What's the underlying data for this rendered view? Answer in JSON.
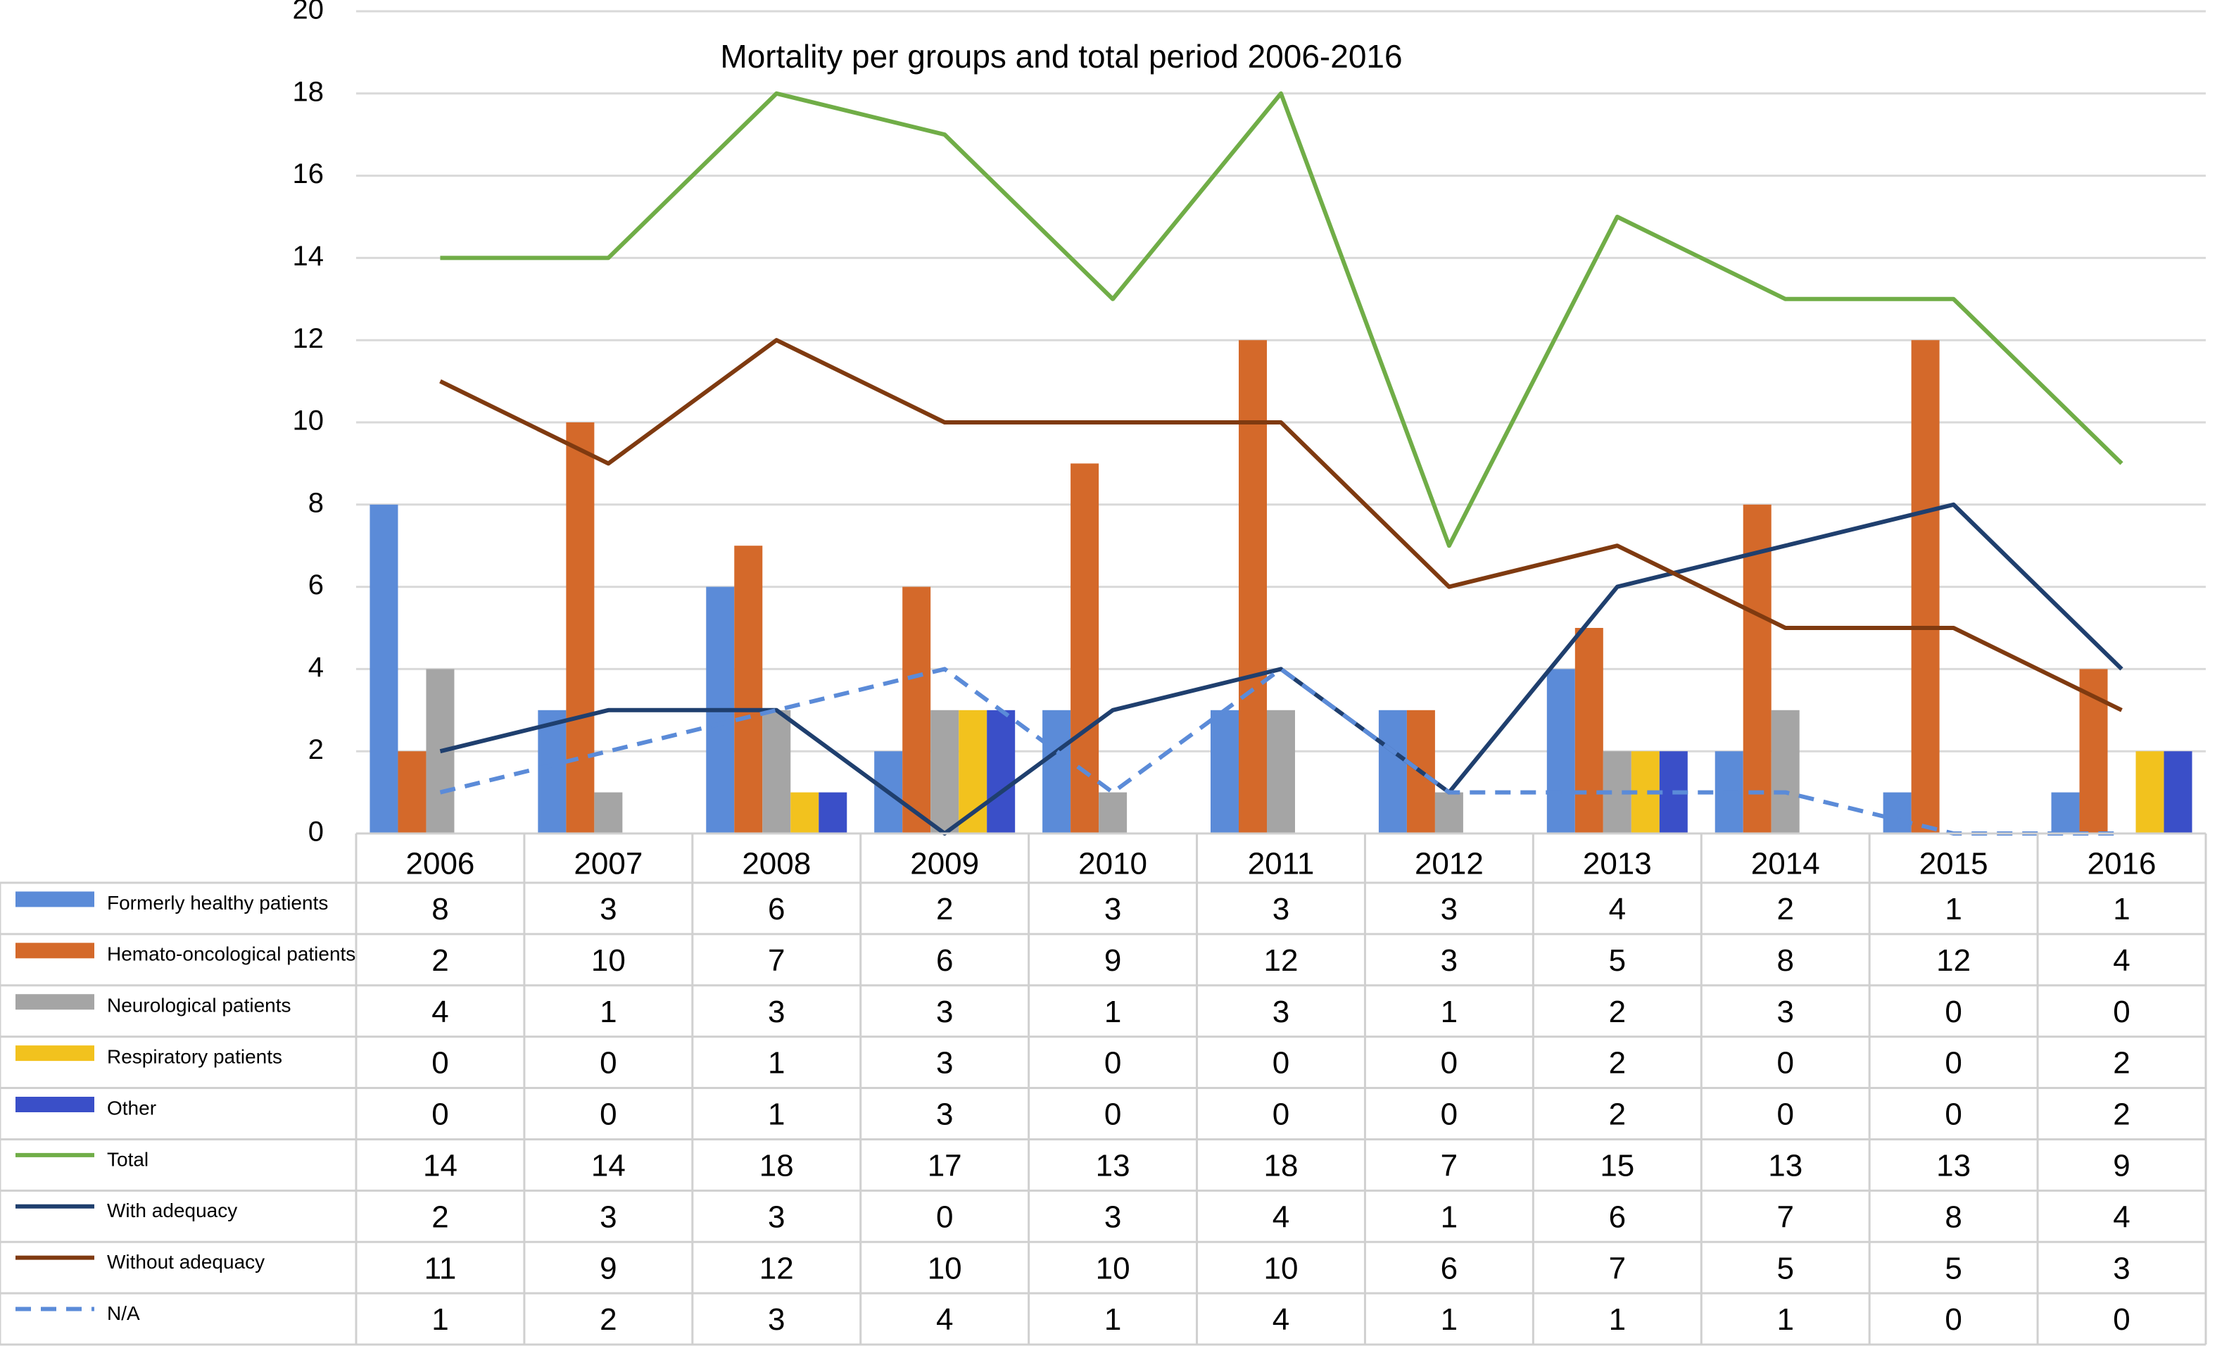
{
  "chart_data": {
    "type": "bar_line",
    "title": "Mortality per groups and total period 2006-2016",
    "categories": [
      "2006",
      "2007",
      "2008",
      "2009",
      "2010",
      "2011",
      "2012",
      "2013",
      "2014",
      "2015",
      "2016"
    ],
    "ylim": [
      0,
      20
    ],
    "yticks": [
      0,
      2,
      4,
      6,
      8,
      10,
      12,
      14,
      16,
      18,
      20
    ],
    "grid": true,
    "data_table": true,
    "series": [
      {
        "name": "Formerly healthy patients",
        "type": "bar",
        "color": "#5b8bd8",
        "values": [
          8,
          3,
          6,
          2,
          3,
          3,
          3,
          4,
          2,
          1,
          1
        ]
      },
      {
        "name": "Hemato-oncological patients",
        "type": "bar",
        "color": "#d4692a",
        "values": [
          2,
          10,
          7,
          6,
          9,
          12,
          3,
          5,
          8,
          12,
          4
        ]
      },
      {
        "name": "Neurological patients",
        "type": "bar",
        "color": "#a5a5a5",
        "values": [
          4,
          1,
          3,
          3,
          1,
          3,
          1,
          2,
          3,
          0,
          0
        ]
      },
      {
        "name": "Respiratory patients",
        "type": "bar",
        "color": "#f2c21e",
        "values": [
          0,
          0,
          1,
          3,
          0,
          0,
          0,
          2,
          0,
          0,
          2
        ]
      },
      {
        "name": "Other",
        "type": "bar",
        "color": "#3a4fc8",
        "values": [
          0,
          0,
          1,
          3,
          0,
          0,
          0,
          2,
          0,
          0,
          2
        ]
      },
      {
        "name": "Total",
        "type": "line",
        "color": "#70ad47",
        "values": [
          14,
          14,
          18,
          17,
          13,
          18,
          7,
          15,
          13,
          13,
          9
        ]
      },
      {
        "name": "With adequacy",
        "type": "line",
        "color": "#1f3f6e",
        "values": [
          2,
          3,
          3,
          0,
          3,
          4,
          1,
          6,
          7,
          8,
          4
        ]
      },
      {
        "name": "Without adequacy",
        "type": "line",
        "color": "#7f3a10",
        "values": [
          11,
          9,
          12,
          10,
          10,
          10,
          6,
          7,
          5,
          5,
          3
        ]
      },
      {
        "name": "N/A",
        "type": "line",
        "dashed": true,
        "color": "#5b8bd8",
        "values": [
          1,
          2,
          3,
          4,
          1,
          4,
          1,
          1,
          1,
          0,
          0
        ]
      }
    ]
  }
}
